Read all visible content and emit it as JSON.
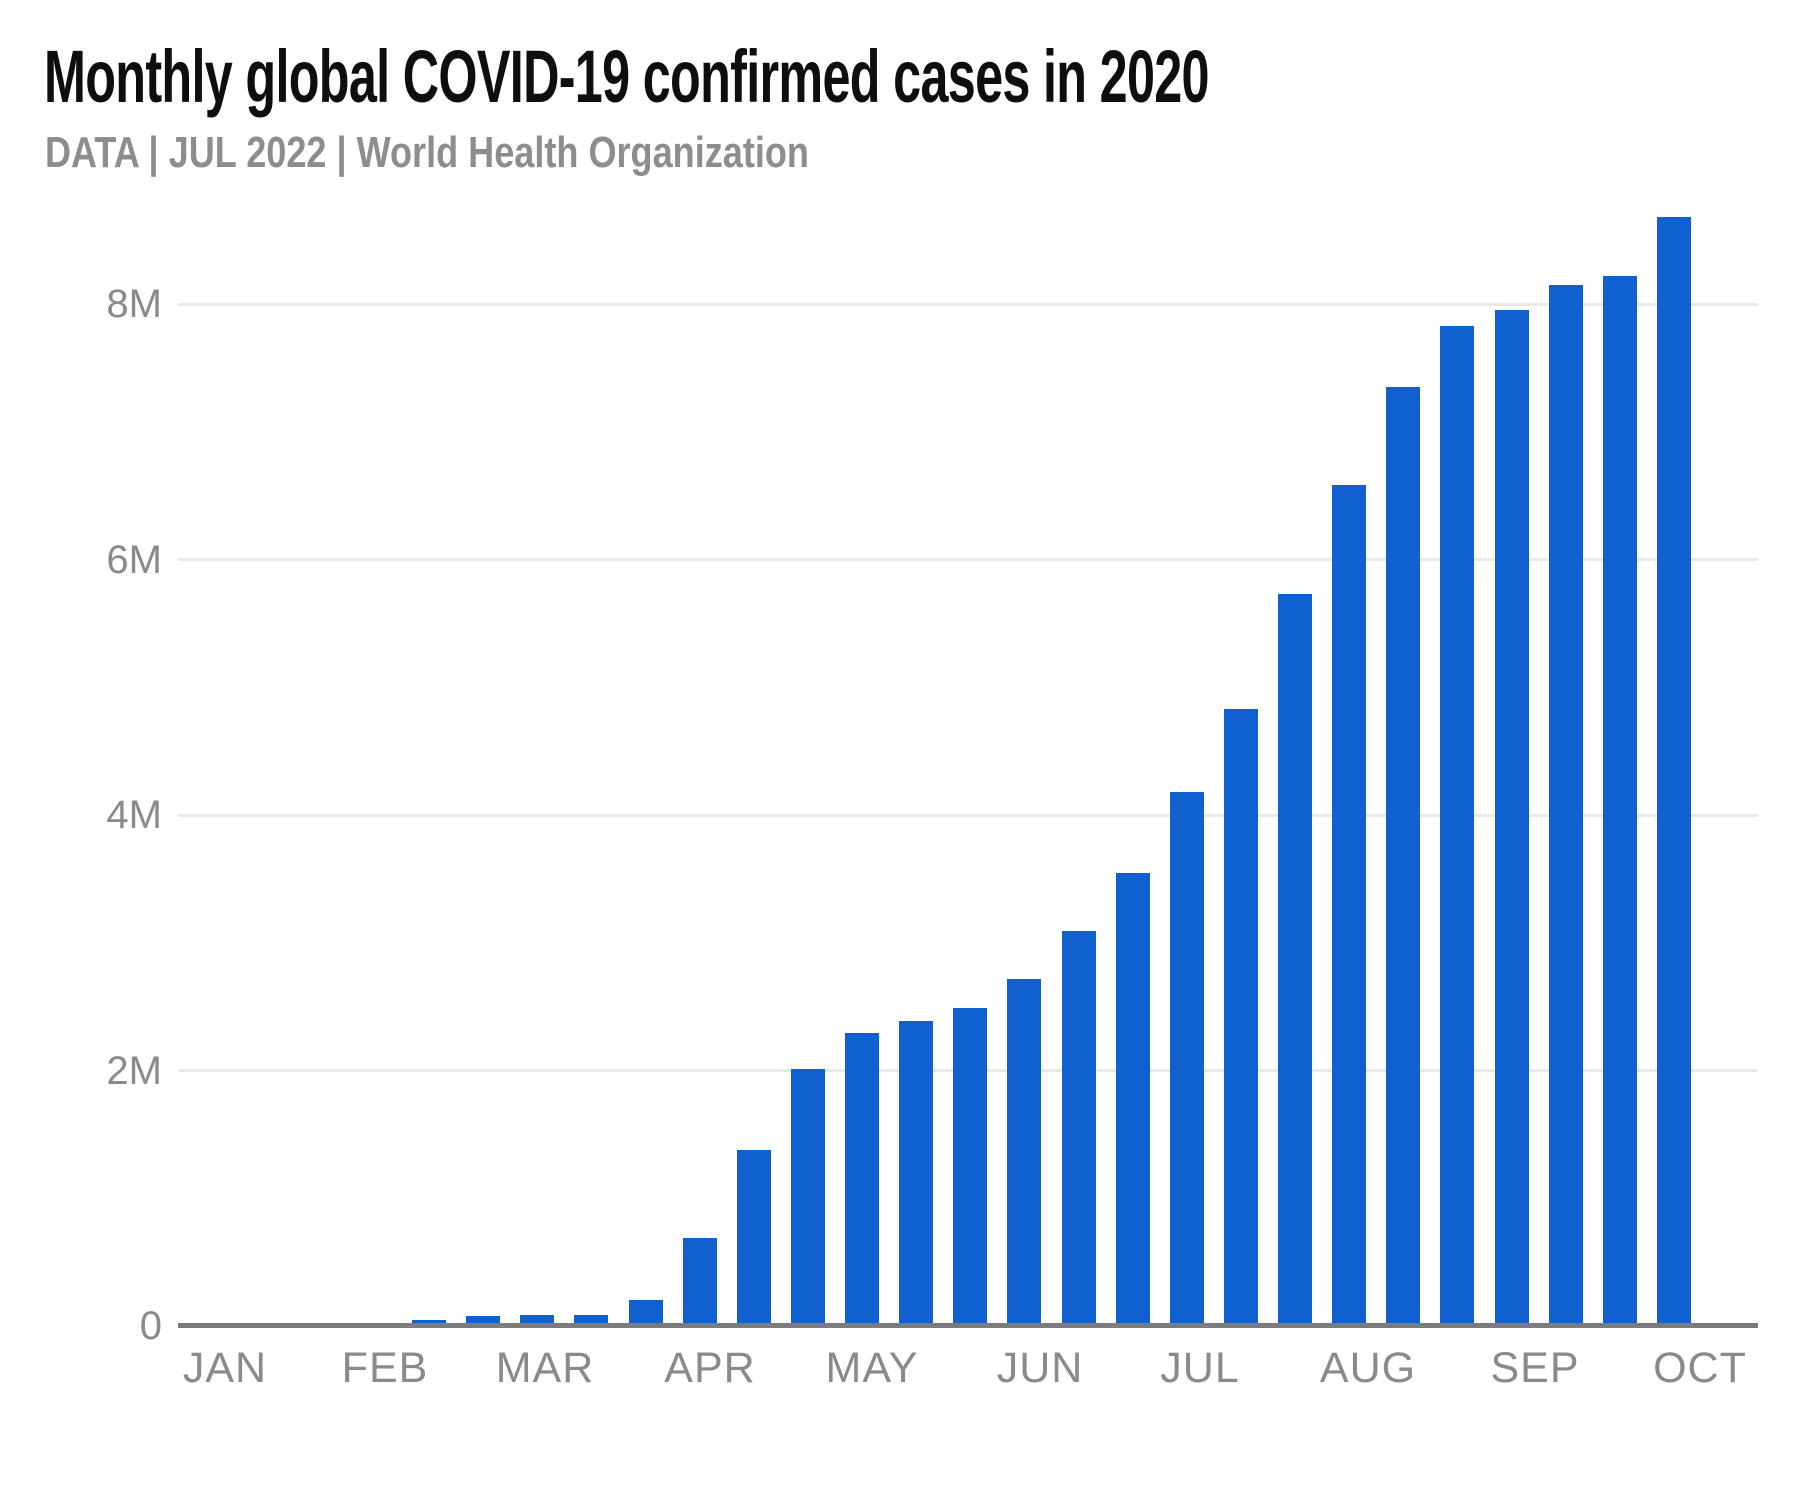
{
  "chart_data": {
    "type": "bar",
    "title": "Monthly global COVID-19 confirmed cases in 2020",
    "subtitle": "DATA | JUL 2022 | World Health Organization",
    "source": "World Health Organization",
    "unit": "confirmed cases (millions)",
    "grid": "horizontal",
    "legend": "none",
    "ylim_millions": [
      0,
      8.8
    ],
    "y_ticks": [
      {
        "label": "0",
        "value_millions": 0
      },
      {
        "label": "2M",
        "value_millions": 2
      },
      {
        "label": "4M",
        "value_millions": 4
      },
      {
        "label": "6M",
        "value_millions": 6
      },
      {
        "label": "8M",
        "value_millions": 8
      }
    ],
    "x_tick_labels": [
      "JAN",
      "FEB",
      "MAR",
      "APR",
      "MAY",
      "JUN",
      "JUL",
      "AUG",
      "SEP",
      "OCT"
    ],
    "bars": [
      {
        "period": "FEB-1",
        "value_millions": 0.05
      },
      {
        "period": "FEB-2",
        "value_millions": 0.08
      },
      {
        "period": "FEB-3",
        "value_millions": 0.09
      },
      {
        "period": "MAR-1",
        "value_millions": 0.09
      },
      {
        "period": "MAR-2",
        "value_millions": 0.2
      },
      {
        "period": "MAR-3",
        "value_millions": 0.69
      },
      {
        "period": "APR-1",
        "value_millions": 1.38
      },
      {
        "period": "APR-2",
        "value_millions": 2.01
      },
      {
        "period": "APR-3",
        "value_millions": 2.29
      },
      {
        "period": "MAY-1",
        "value_millions": 2.39
      },
      {
        "period": "MAY-2",
        "value_millions": 2.49
      },
      {
        "period": "MAY-3",
        "value_millions": 2.72
      },
      {
        "period": "JUN-1",
        "value_millions": 3.09
      },
      {
        "period": "JUN-2",
        "value_millions": 3.55
      },
      {
        "period": "JUN-3",
        "value_millions": 4.18
      },
      {
        "period": "JUL-1",
        "value_millions": 4.83
      },
      {
        "period": "JUL-2",
        "value_millions": 5.73
      },
      {
        "period": "JUL-3",
        "value_millions": 6.58
      },
      {
        "period": "AUG-1",
        "value_millions": 7.35
      },
      {
        "period": "AUG-2",
        "value_millions": 7.83
      },
      {
        "period": "AUG-3",
        "value_millions": 7.95
      },
      {
        "period": "SEP-1",
        "value_millions": 8.15
      },
      {
        "period": "SEP-2",
        "value_millions": 8.22
      },
      {
        "period": "SEP-3",
        "value_millions": 8.68
      }
    ],
    "colors": {
      "bar": "#1061cf",
      "gridline": "#e9e9e9",
      "axis_line": "#7b7b7b",
      "axis_label": "#8a8a8a",
      "title": "#0e0e0e",
      "subtitle": "#8d8d8d",
      "background": "#ffffff"
    }
  }
}
